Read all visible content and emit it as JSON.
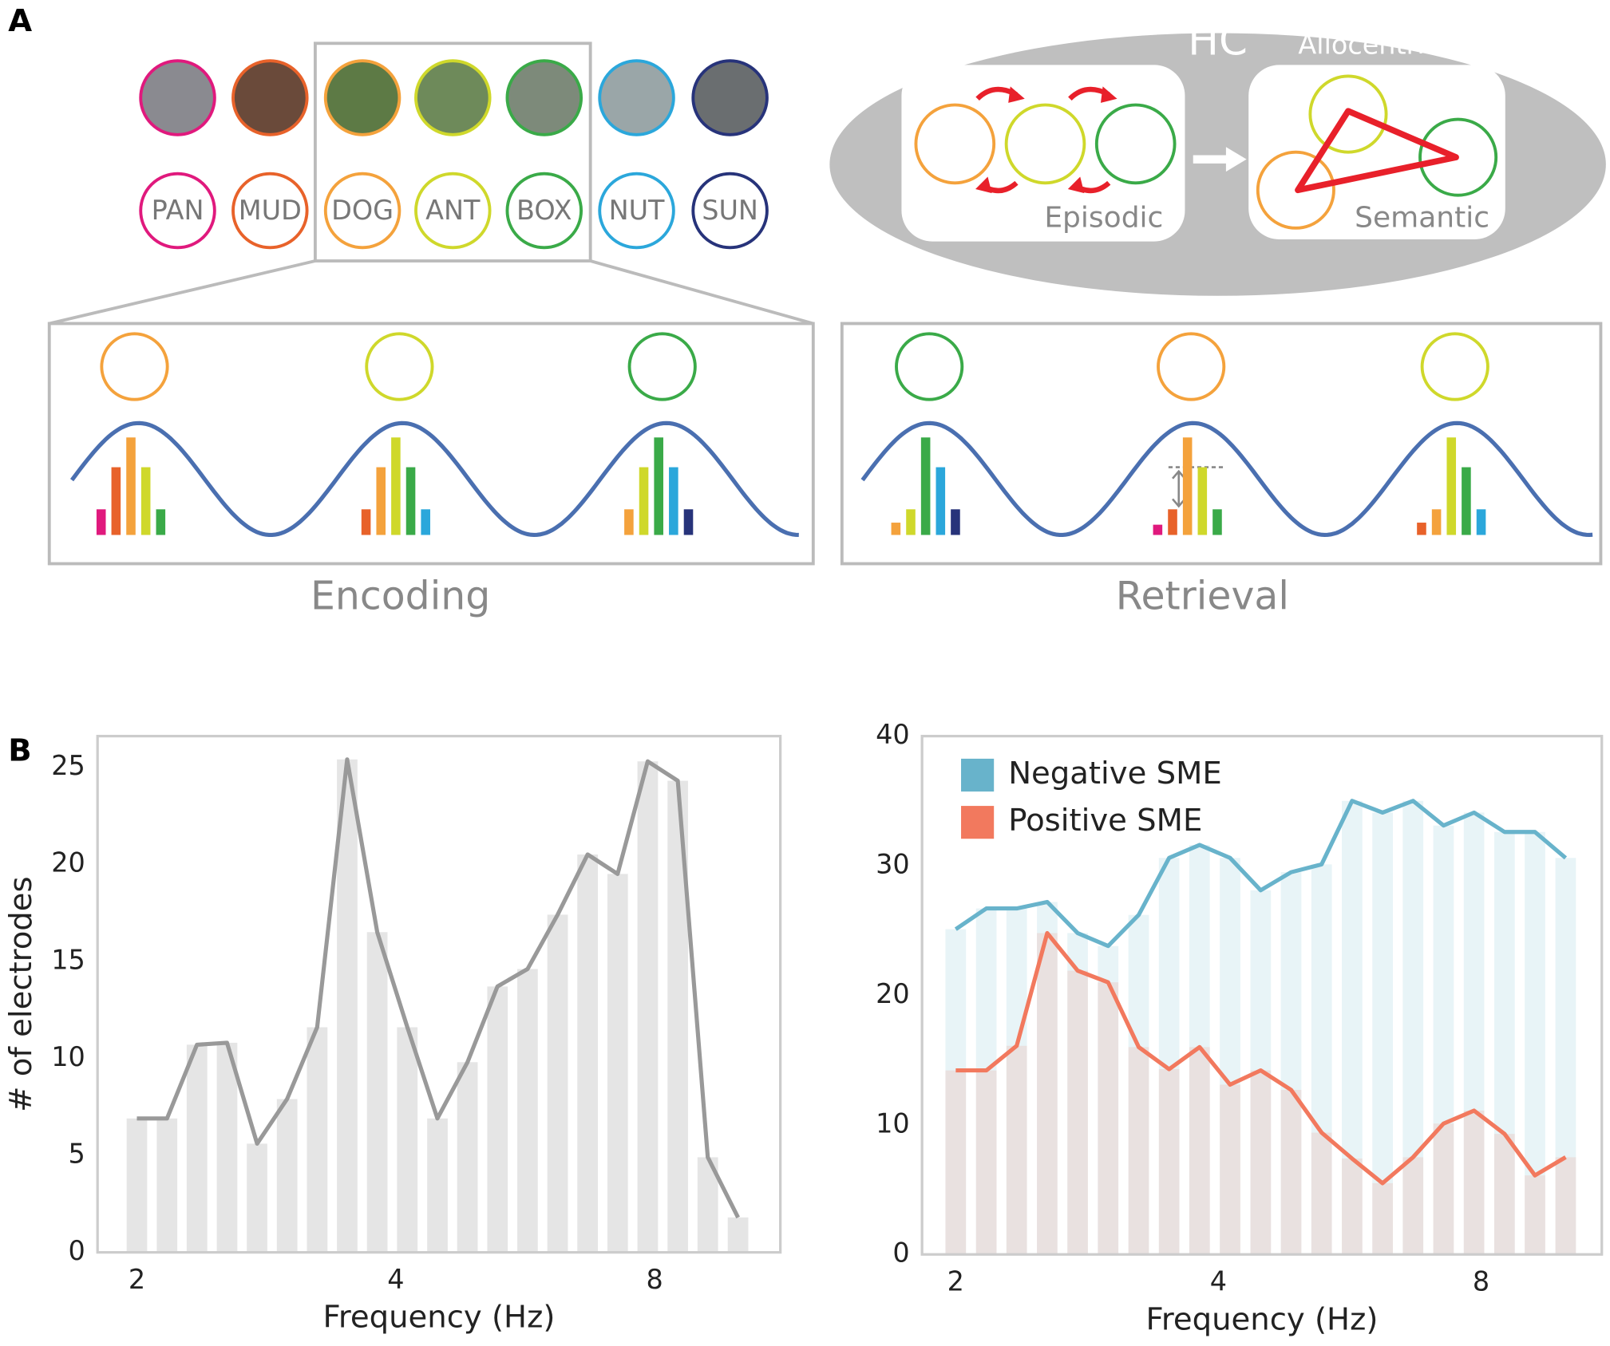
{
  "panel_a": {
    "label": "A",
    "words": [
      "PAN",
      "MUD",
      "DOG",
      "ANT",
      "BOX",
      "NUT",
      "SUN"
    ],
    "hc": "HC",
    "allocentric": "Allocentric",
    "episodic": "Episodic",
    "semantic": "Semantic",
    "encoding": "Encoding",
    "retrieval": "Retrieval"
  },
  "panel_b": {
    "label": "B"
  },
  "chart_data": [
    {
      "type": "bar_line",
      "xlabel": "Frequency (Hz)",
      "ylabel": "# of electrodes",
      "xscale": "log",
      "x": [
        2,
        2.168,
        2.349,
        2.546,
        2.759,
        2.99,
        3.241,
        3.512,
        3.806,
        4.125,
        4.472,
        4.846,
        5.252,
        5.692,
        6.169,
        6.685,
        7.245,
        7.852,
        8.51,
        9.222,
        10
      ],
      "values": [
        6.9,
        6.9,
        10.7,
        10.8,
        5.6,
        7.9,
        11.6,
        25.4,
        16.5,
        11.6,
        6.9,
        9.8,
        13.7,
        14.6,
        17.4,
        20.5,
        19.5,
        25.3,
        24.3,
        4.9,
        1.8
      ],
      "color": "#999999",
      "xlim": [
        1.8,
        11.2
      ],
      "xticks": [
        2,
        4,
        8
      ],
      "ylim": [
        0,
        26.6
      ],
      "yticks": [
        0,
        5,
        10,
        15,
        20,
        25
      ]
    },
    {
      "type": "bar_line",
      "xlabel": "Frequency (Hz)",
      "xscale": "log",
      "legend": "upper left",
      "x": [
        2,
        2.168,
        2.349,
        2.546,
        2.759,
        2.99,
        3.241,
        3.512,
        3.806,
        4.125,
        4.472,
        4.846,
        5.252,
        5.692,
        6.169,
        6.685,
        7.245,
        7.852,
        8.51,
        9.222,
        10
      ],
      "series": [
        {
          "name": "Negative SME",
          "color": "#68b3cb",
          "values": [
            25.1,
            26.7,
            26.7,
            27.2,
            24.8,
            23.8,
            26.2,
            30.6,
            31.6,
            30.6,
            28.1,
            29.5,
            30.1,
            35.0,
            34.1,
            35.0,
            33.1,
            34.1,
            32.6,
            32.6,
            30.6
          ]
        },
        {
          "name": "Positive SME",
          "color": "#f2795e",
          "values": [
            14.2,
            14.2,
            16.1,
            24.8,
            21.9,
            21.0,
            16.0,
            14.3,
            16.0,
            13.1,
            14.2,
            12.7,
            9.4,
            7.4,
            5.5,
            7.5,
            10.1,
            11.1,
            9.3,
            6.1,
            7.5
          ]
        }
      ],
      "xlim": [
        1.83,
        11.0
      ],
      "xticks": [
        2,
        4,
        8
      ],
      "ylim": [
        0,
        40
      ],
      "yticks": [
        0,
        10,
        20,
        30,
        40
      ]
    }
  ]
}
